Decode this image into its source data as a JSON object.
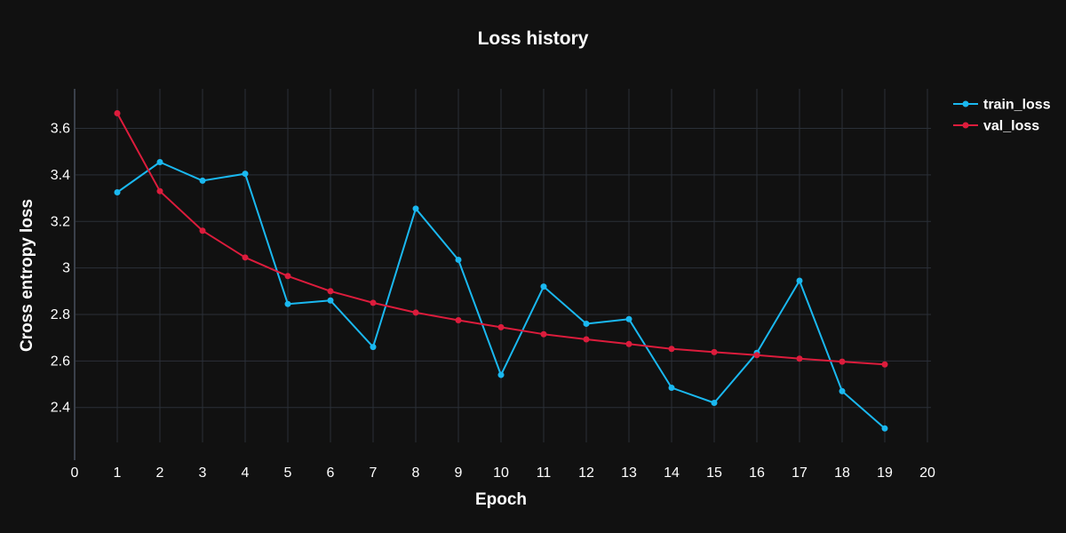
{
  "chart_data": {
    "type": "line",
    "title": "Loss history",
    "xlabel": "Epoch",
    "ylabel": "Cross entropy loss",
    "xlim": [
      0,
      20
    ],
    "ylim": [
      2.25,
      3.77
    ],
    "xticks": [
      0,
      1,
      2,
      3,
      4,
      5,
      6,
      7,
      8,
      9,
      10,
      11,
      12,
      13,
      14,
      15,
      16,
      17,
      18,
      19,
      20
    ],
    "yticks": [
      2.4,
      2.6,
      2.8,
      3.0,
      3.2,
      3.4,
      3.6
    ],
    "ytick_labels": [
      "2.4",
      "2.6",
      "2.8",
      "3",
      "3.2",
      "3.4",
      "3.6"
    ],
    "grid": true,
    "legend_position": "top-right",
    "series": [
      {
        "name": "train_loss",
        "color": "#1ab8f0",
        "x": [
          1,
          2,
          3,
          4,
          5,
          6,
          7,
          8,
          9,
          10,
          11,
          12,
          13,
          14,
          15,
          16,
          17,
          18,
          19
        ],
        "values": [
          3.325,
          3.455,
          3.375,
          3.405,
          2.845,
          2.86,
          2.66,
          3.255,
          3.035,
          2.54,
          2.92,
          2.76,
          2.78,
          2.485,
          2.42,
          2.635,
          2.945,
          2.47,
          2.31
        ]
      },
      {
        "name": "val_loss",
        "color": "#dc1c3c",
        "x": [
          1,
          2,
          3,
          4,
          5,
          6,
          7,
          8,
          9,
          10,
          11,
          12,
          13,
          14,
          15,
          16,
          17,
          18,
          19
        ],
        "values": [
          3.665,
          3.33,
          3.16,
          3.045,
          2.965,
          2.9,
          2.85,
          2.808,
          2.775,
          2.745,
          2.715,
          2.693,
          2.673,
          2.652,
          2.638,
          2.625,
          2.61,
          2.597,
          2.585
        ]
      }
    ]
  }
}
